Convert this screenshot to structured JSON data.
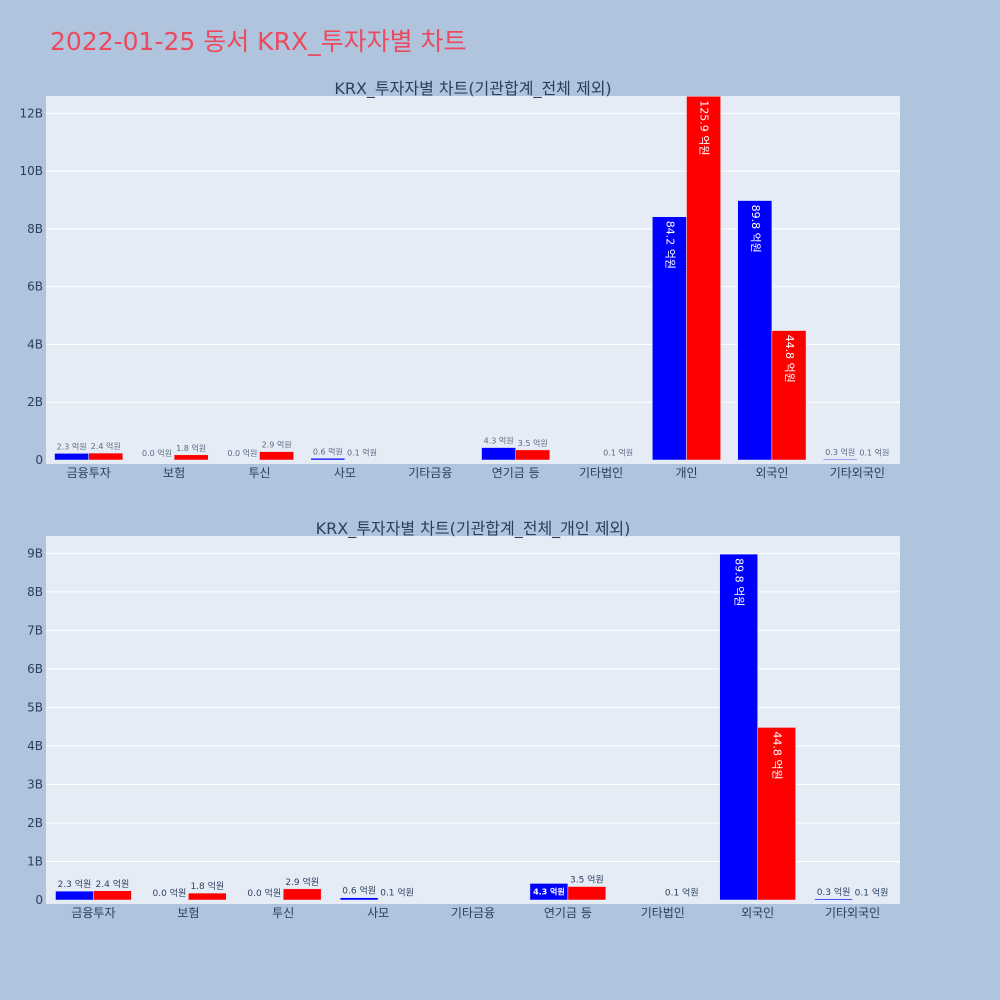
{
  "page": {
    "title": "2022-01-25 동서 KRX_투자자별 차트",
    "background": "#b0c4de",
    "title_color": "#ec4a5c"
  },
  "colors": {
    "plot_bg": "#e5ecf6",
    "grid": "#ffffff",
    "text": "#2a3f5f",
    "label_text": "#5a6b82"
  },
  "chart_data": [
    {
      "type": "bar",
      "title": "KRX_투자자별 차트(기관합계_전체 제외)",
      "categories": [
        "금융투자",
        "보험",
        "투신",
        "사모",
        "기타금융",
        "연기금 등",
        "기타법인",
        "개인",
        "외국인",
        "기타외국인"
      ],
      "y_ticks": [
        0,
        2000000000,
        4000000000,
        6000000000,
        8000000000,
        10000000000,
        12000000000
      ],
      "y_tick_labels": [
        "0",
        "2B",
        "4B",
        "6B",
        "8B",
        "10B",
        "12B"
      ],
      "ylim": [
        0,
        12600000000
      ],
      "grid": true,
      "series": [
        {
          "color": "#0000ff",
          "values": [
            230000000,
            0,
            0,
            60000000,
            null,
            430000000,
            null,
            8420000000,
            8980000000,
            30000000
          ],
          "labels": [
            "2.3 억원",
            "0.0 억원",
            "0.0 억원",
            "0.6 억원",
            "",
            "4.3 억원",
            "",
            "84.2 억원",
            "89.8 억원",
            "0.3 억원"
          ]
        },
        {
          "color": "#ff0000",
          "values": [
            240000000,
            180000000,
            290000000,
            10000000,
            null,
            350000000,
            10000000,
            12590000000,
            4480000000,
            10000000
          ],
          "labels": [
            "2.4 억원",
            "1.8 억원",
            "2.9 억원",
            "0.1 억원",
            "",
            "3.5 억원",
            "0.1 억원",
            "125.9 억원",
            "44.8 억원",
            "0.1 억원"
          ]
        }
      ]
    },
    {
      "type": "bar",
      "title": "KRX_투자자별 차트(기관합계_전체_개인 제외)",
      "categories": [
        "금융투자",
        "보험",
        "투신",
        "사모",
        "기타금융",
        "연기금 등",
        "기타법인",
        "외국인",
        "기타외국인"
      ],
      "y_ticks": [
        0,
        1000000000,
        2000000000,
        3000000000,
        4000000000,
        5000000000,
        6000000000,
        7000000000,
        8000000000,
        9000000000
      ],
      "y_tick_labels": [
        "0",
        "1B",
        "2B",
        "3B",
        "4B",
        "5B",
        "6B",
        "7B",
        "8B",
        "9B"
      ],
      "ylim": [
        0,
        9450000000
      ],
      "grid": true,
      "series": [
        {
          "color": "#0000ff",
          "values": [
            230000000,
            0,
            0,
            60000000,
            null,
            430000000,
            null,
            8980000000,
            30000000
          ],
          "labels": [
            "2.3 억원",
            "0.0 억원",
            "0.0 억원",
            "0.6 억원",
            "",
            "4.3 억원",
            "",
            "89.8 억원",
            "0.3 억원"
          ]
        },
        {
          "color": "#ff0000",
          "values": [
            240000000,
            180000000,
            290000000,
            10000000,
            null,
            350000000,
            10000000,
            4480000000,
            10000000
          ],
          "labels": [
            "2.4 억원",
            "1.8 억원",
            "2.9 억원",
            "0.1 억원",
            "",
            "3.5 억원",
            "0.1 억원",
            "44.8 억원",
            "0.1 억원"
          ]
        }
      ]
    }
  ]
}
